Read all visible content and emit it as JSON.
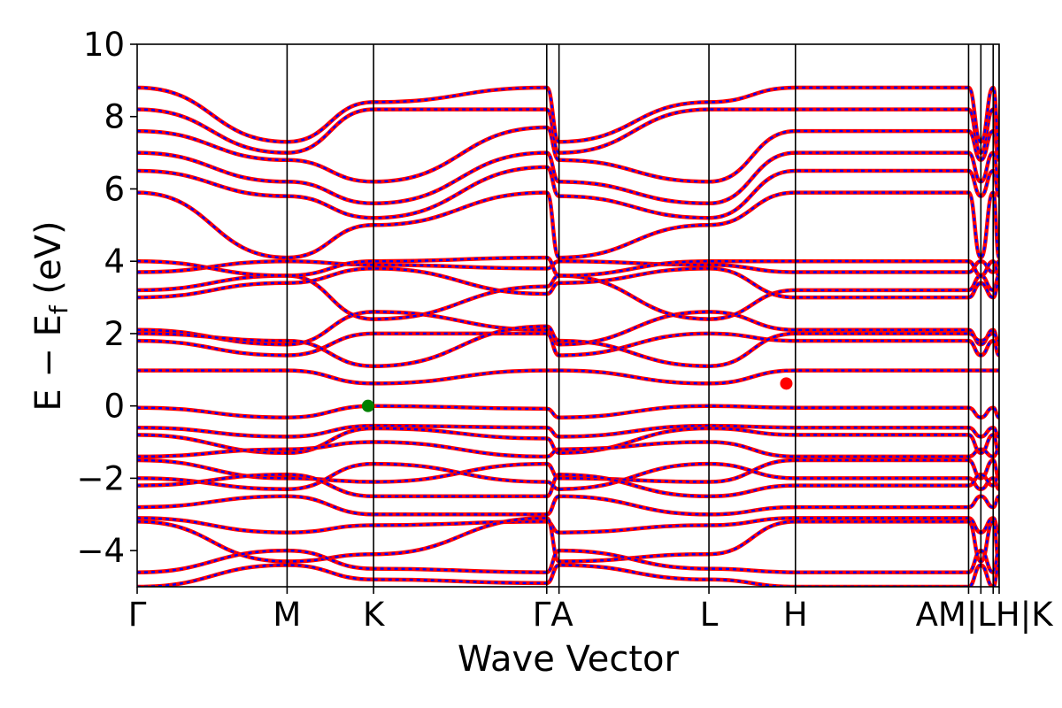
{
  "chart_data": {
    "type": "line",
    "title": "",
    "xlabel": "Wave Vector",
    "ylabel": {
      "main": "E − E",
      "sub": "f",
      "unit": " (eV)"
    },
    "ylim": [
      -5,
      10
    ],
    "yticks": [
      {
        "value": -4,
        "label": "−4"
      },
      {
        "value": -2,
        "label": "−2"
      },
      {
        "value": 0,
        "label": "0"
      },
      {
        "value": 2,
        "label": "2"
      },
      {
        "value": 4,
        "label": "4"
      },
      {
        "value": 6,
        "label": "6"
      },
      {
        "value": 8,
        "label": "8"
      },
      {
        "value": 10,
        "label": "10"
      }
    ],
    "xlim": [
      0,
      5.75
    ],
    "high_symmetry_points": [
      {
        "label": "Γ",
        "x": 0.0
      },
      {
        "label": "M",
        "x": 1.0
      },
      {
        "label": "K",
        "x": 1.577
      },
      {
        "label": "Γ",
        "x": 2.732
      },
      {
        "label": "A",
        "x": 2.814
      },
      {
        "label": "L",
        "x": 3.814
      },
      {
        "label": "H",
        "x": 4.391
      },
      {
        "label": "A",
        "x": 5.546
      },
      {
        "label": "M",
        "x": 5.628
      },
      {
        "label": "L",
        "x": 5.71
      },
      {
        "label": "H",
        "x": 5.75
      }
    ],
    "xtick_labels": [
      {
        "label": "Γ",
        "x": 0.0
      },
      {
        "label": "M",
        "x": 1.0
      },
      {
        "label": "K",
        "x": 1.577
      },
      {
        "label": "ΓA",
        "x": 2.773
      },
      {
        "label": "L",
        "x": 3.814
      },
      {
        "label": "H",
        "x": 4.391
      },
      {
        "label": "AM|LH|K",
        "x": 5.65
      }
    ],
    "series": [
      {
        "color": "#ff0000",
        "style": "solid"
      },
      {
        "color": "#0000ff",
        "style": "dashed"
      }
    ],
    "markers": [
      {
        "name": "VBM",
        "x": 1.54,
        "y": 0.0,
        "color": "#008000"
      },
      {
        "name": "CBM",
        "x": 4.33,
        "y": 0.62,
        "color": "#ff0000"
      }
    ],
    "valence_bands": [
      [
        -0.05,
        -0.32,
        0.0,
        -0.08,
        -0.32,
        0.0,
        -0.05
      ],
      [
        -0.6,
        -0.85,
        -0.55,
        -0.6,
        -0.85,
        -0.55,
        -0.6
      ],
      [
        -0.8,
        -1.3,
        -0.62,
        -0.9,
        -1.3,
        -0.62,
        -0.8
      ],
      [
        -1.4,
        -1.2,
        -1.0,
        -1.4,
        -1.2,
        -1.0,
        -1.4
      ],
      [
        -1.5,
        -2.0,
        -2.1,
        -1.6,
        -2.0,
        -2.1,
        -1.5
      ],
      [
        -2.0,
        -2.3,
        -1.6,
        -2.1,
        -2.3,
        -1.6,
        -2.0
      ],
      [
        -2.2,
        -1.9,
        -2.5,
        -2.5,
        -1.9,
        -2.5,
        -2.2
      ],
      [
        -2.8,
        -2.5,
        -3.0,
        -3.0,
        -2.5,
        -3.0,
        -2.8
      ],
      [
        -3.1,
        -3.5,
        -3.3,
        -3.2,
        -3.5,
        -3.3,
        -3.1
      ],
      [
        -3.2,
        -4.3,
        -4.1,
        -3.1,
        -4.3,
        -4.1,
        -3.2
      ],
      [
        -4.6,
        -4.0,
        -4.5,
        -4.6,
        -4.0,
        -4.5,
        -4.6
      ],
      [
        -5.0,
        -4.4,
        -4.8,
        -4.9,
        -4.4,
        -4.8,
        -5.0
      ]
    ],
    "conduction_bands": [
      [
        0.98,
        0.98,
        0.62,
        0.98,
        0.98,
        0.62,
        0.98
      ],
      [
        2.1,
        1.7,
        2.6,
        2.1,
        1.7,
        2.6,
        2.1
      ],
      [
        1.8,
        1.4,
        2.0,
        2.0,
        1.4,
        2.0,
        1.8
      ],
      [
        2.0,
        1.8,
        1.1,
        2.2,
        1.8,
        1.1,
        2.0
      ],
      [
        3.2,
        3.6,
        2.4,
        3.3,
        3.6,
        2.4,
        3.2
      ],
      [
        3.0,
        3.4,
        3.8,
        3.1,
        3.4,
        3.8,
        3.0
      ],
      [
        3.7,
        4.0,
        3.9,
        3.8,
        4.0,
        3.9,
        3.7
      ],
      [
        4.0,
        3.6,
        4.0,
        4.1,
        3.6,
        4.0,
        4.0
      ],
      [
        5.9,
        4.1,
        5.0,
        5.9,
        4.1,
        5.0,
        5.9
      ],
      [
        6.5,
        5.8,
        5.2,
        6.6,
        5.8,
        5.2,
        6.5
      ],
      [
        7.0,
        6.2,
        5.6,
        7.0,
        6.2,
        5.6,
        7.0
      ],
      [
        7.6,
        6.8,
        6.2,
        7.7,
        6.8,
        6.2,
        7.6
      ],
      [
        8.2,
        7.0,
        8.2,
        8.2,
        7.0,
        8.2,
        8.2
      ],
      [
        8.8,
        7.3,
        8.4,
        8.8,
        7.3,
        8.4,
        8.8
      ]
    ]
  }
}
